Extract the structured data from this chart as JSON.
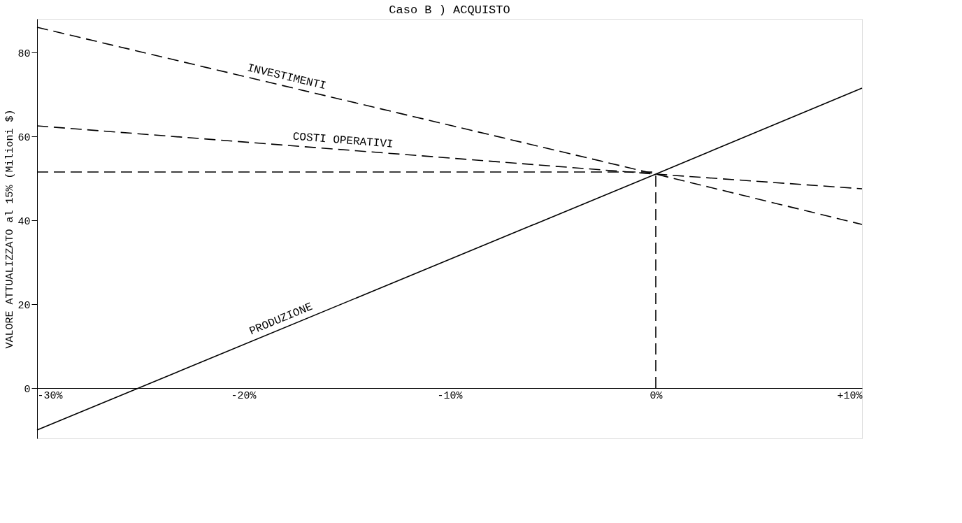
{
  "chart_data": {
    "type": "line",
    "title": "Caso B ) ACQUISTO",
    "ylabel": "VALORE ATTUALIZZATO al 15% (Milioni $)",
    "xlim": [
      -30,
      10
    ],
    "xticks": [
      {
        "value": -30,
        "label": "-30%"
      },
      {
        "value": -20,
        "label": "-20%"
      },
      {
        "value": -10,
        "label": "-10%"
      },
      {
        "value": 0,
        "label": "0%"
      },
      {
        "value": 10,
        "label": "+10%"
      }
    ],
    "ylim": [
      -12,
      88
    ],
    "yticks": [
      0,
      20,
      40,
      60,
      80
    ],
    "grid": false,
    "marker": "none",
    "series": [
      {
        "name": "INVESTIMENTI",
        "color": "#000000",
        "x": [
          -30,
          0,
          10
        ],
        "values": [
          86,
          51,
          39
        ],
        "line_style": "dashed"
      },
      {
        "name": "COSTI OPERATIVI",
        "color": "#000000",
        "x": [
          -30,
          0,
          10
        ],
        "values": [
          62.5,
          51,
          47.5
        ],
        "line_style": "dashed"
      },
      {
        "name": "PRODUZIONE",
        "color": "#000000",
        "x": [
          -30,
          0,
          10
        ],
        "values": [
          -10,
          51,
          71.5
        ],
        "line_style": "solid"
      },
      {
        "color": "#000000",
        "x": [
          -30,
          0
        ],
        "values": [
          51.5,
          51.5
        ],
        "line_style": "dashed"
      },
      {
        "color": "#000000",
        "x": [
          0,
          0
        ],
        "values": [
          0,
          51
        ],
        "line_style": "dashed"
      }
    ]
  }
}
